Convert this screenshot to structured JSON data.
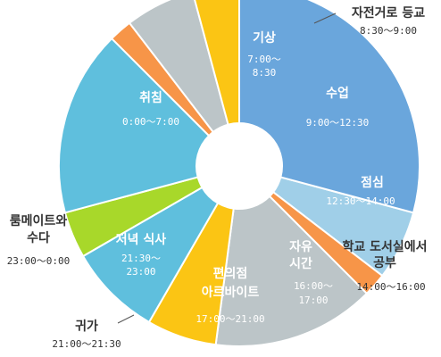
{
  "chart_data": {
    "type": "pie",
    "style": "donut",
    "slices": [
      {
        "label": "기상",
        "time": "7:00～8:30",
        "start": 7.0,
        "end": 8.5,
        "color": "#a0cfe8"
      },
      {
        "label": "자전거로 등교",
        "time": "8:30～9:00",
        "start": 8.5,
        "end": 9.0,
        "color": "#f79548"
      },
      {
        "label": "수업",
        "time": "9:00～12:30",
        "start": 9.0,
        "end": 12.5,
        "color": "#bcc5c8"
      },
      {
        "label": "점심",
        "time": "12:30～14:00",
        "start": 12.5,
        "end": 14.0,
        "color": "#fbc514"
      },
      {
        "label": "학교 도서실에서 공부",
        "time": "14:00～16:00",
        "start": 14.0,
        "end": 16.0,
        "color": "#5fbfdd"
      },
      {
        "label": "자유 시간",
        "time": "16:00～17:00",
        "start": 16.0,
        "end": 17.0,
        "color": "#a8d82a"
      },
      {
        "label": "편의점 아르바이트",
        "time": "17:00～21:00",
        "start": 17.0,
        "end": 21.0,
        "color": "#5fbfdd"
      },
      {
        "label": "귀가",
        "time": "21:00～21:30",
        "start": 21.0,
        "end": 21.5,
        "color": "#f79548"
      },
      {
        "label": "저녁 식사",
        "time": "21:30～23:00",
        "start": 21.5,
        "end": 23.0,
        "color": "#bcc5c8"
      },
      {
        "label": "룸메이트와 수다",
        "time": "23:00～0:00",
        "start": 23.0,
        "end": 24.0,
        "color": "#fbc514"
      },
      {
        "label": "취침",
        "time": "0:00～7:00",
        "start": 0.0,
        "end": 7.0,
        "color": "#6aa6dc"
      }
    ]
  }
}
